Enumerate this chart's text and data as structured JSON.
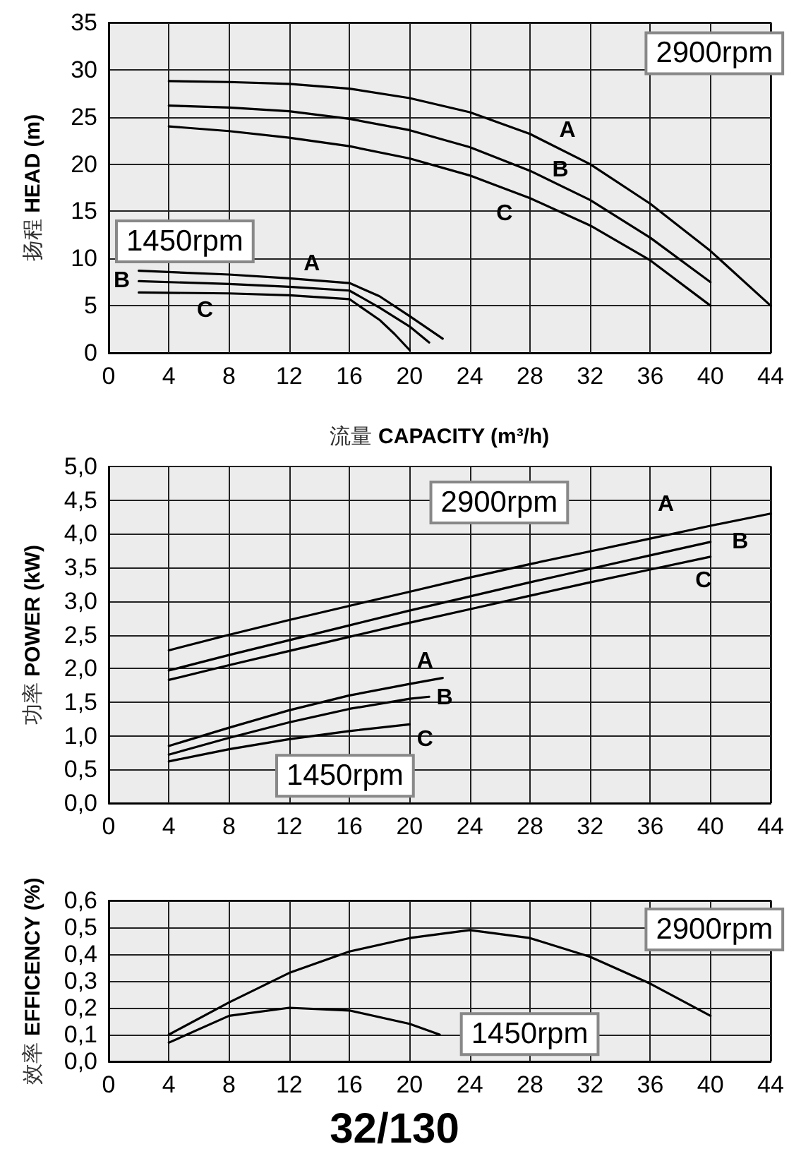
{
  "chart_data": [
    {
      "type": "line",
      "xlabel": "流量 CAPACITY (m³/h)",
      "ylabel": "扬程 HEAD (m)",
      "xlim": [
        0,
        44
      ],
      "xticks": [
        0,
        4,
        8,
        12,
        16,
        20,
        24,
        28,
        32,
        36,
        40,
        44
      ],
      "ylim": [
        0,
        35
      ],
      "yticks": [
        0,
        5,
        10,
        15,
        20,
        25,
        30,
        35
      ],
      "grid": true,
      "marker": "none",
      "line_style": "solid",
      "annotations": [
        "2900rpm",
        "1450rpm"
      ],
      "series": [
        {
          "name": "A",
          "color": "#000000",
          "x": [
            4,
            8,
            12,
            16,
            20,
            24,
            28,
            32,
            36,
            40,
            44
          ],
          "values": [
            28.8,
            28.7,
            28.5,
            28.0,
            27.0,
            25.5,
            23.2,
            20.0,
            15.8,
            10.8,
            5.0
          ]
        },
        {
          "name": "B",
          "color": "#000000",
          "x": [
            4,
            8,
            12,
            16,
            20,
            24,
            28,
            32,
            36,
            40
          ],
          "values": [
            26.2,
            26.0,
            25.6,
            24.8,
            23.6,
            21.8,
            19.3,
            16.2,
            12.2,
            7.5
          ]
        },
        {
          "name": "C",
          "color": "#000000",
          "x": [
            4,
            8,
            12,
            16,
            20,
            24,
            28,
            32,
            36,
            40
          ],
          "values": [
            24.0,
            23.5,
            22.8,
            21.9,
            20.6,
            18.8,
            16.4,
            13.5,
            9.8,
            5.0
          ]
        },
        {
          "name": "A",
          "color": "#000000",
          "x": [
            2,
            8,
            12,
            16,
            18,
            20,
            22.2
          ],
          "values": [
            8.7,
            8.3,
            7.9,
            7.4,
            6.0,
            3.9,
            1.5
          ]
        },
        {
          "name": "B",
          "color": "#000000",
          "x": [
            2,
            8,
            12,
            16,
            18,
            20,
            21.3
          ],
          "values": [
            7.6,
            7.3,
            7.0,
            6.6,
            4.8,
            2.8,
            1.1
          ]
        },
        {
          "name": "C",
          "color": "#000000",
          "x": [
            2,
            8,
            12,
            16,
            18,
            19,
            20
          ],
          "values": [
            6.4,
            6.3,
            6.1,
            5.7,
            3.5,
            2.0,
            0.3
          ]
        }
      ]
    },
    {
      "type": "line",
      "ylabel": "功率 POWER (kW)",
      "xlim": [
        0,
        44
      ],
      "xticks": [
        0,
        4,
        8,
        12,
        16,
        20,
        24,
        28,
        32,
        36,
        40,
        44
      ],
      "ylim": [
        0,
        5
      ],
      "yticks": [
        {
          "value": 0,
          "label": "0,0"
        },
        {
          "value": 0.5,
          "label": "0,5"
        },
        {
          "value": 1,
          "label": "1,0"
        },
        {
          "value": 1.5,
          "label": "1,5"
        },
        {
          "value": 2,
          "label": "2,0"
        },
        {
          "value": 2.5,
          "label": "2,5"
        },
        {
          "value": 3,
          "label": "3,0"
        },
        {
          "value": 3.5,
          "label": "3,5"
        },
        {
          "value": 4,
          "label": "4,0"
        },
        {
          "value": 4.5,
          "label": "4,5"
        },
        {
          "value": 5,
          "label": "5,0"
        }
      ],
      "grid": true,
      "marker": "none",
      "line_style": "solid",
      "annotations": [
        "2900rpm",
        "1450rpm"
      ],
      "series": [
        {
          "name": "A",
          "color": "#000000",
          "x": [
            4,
            8,
            12,
            16,
            20,
            24,
            28,
            32,
            36,
            40,
            44
          ],
          "values": [
            2.27,
            2.5,
            2.72,
            2.93,
            3.14,
            3.35,
            3.55,
            3.74,
            3.93,
            4.12,
            4.3
          ]
        },
        {
          "name": "B",
          "color": "#000000",
          "x": [
            4,
            8,
            12,
            16,
            20,
            24,
            28,
            32,
            36,
            40
          ],
          "values": [
            1.97,
            2.2,
            2.42,
            2.64,
            2.86,
            3.07,
            3.28,
            3.48,
            3.68,
            3.88
          ]
        },
        {
          "name": "C",
          "color": "#000000",
          "x": [
            4,
            8,
            12,
            16,
            20,
            24,
            28,
            32,
            36,
            40
          ],
          "values": [
            1.83,
            2.05,
            2.26,
            2.47,
            2.68,
            2.88,
            3.08,
            3.28,
            3.47,
            3.66
          ]
        },
        {
          "name": "A",
          "color": "#000000",
          "x": [
            4,
            8,
            12,
            16,
            20,
            22.2
          ],
          "values": [
            0.85,
            1.12,
            1.38,
            1.6,
            1.77,
            1.86
          ]
        },
        {
          "name": "B",
          "color": "#000000",
          "x": [
            4,
            8,
            12,
            16,
            20,
            21.3
          ],
          "values": [
            0.72,
            0.97,
            1.2,
            1.4,
            1.55,
            1.58
          ]
        },
        {
          "name": "C",
          "color": "#000000",
          "x": [
            4,
            8,
            12,
            16,
            20
          ],
          "values": [
            0.62,
            0.8,
            0.95,
            1.07,
            1.17
          ]
        }
      ]
    },
    {
      "type": "line",
      "title": "32/130",
      "ylabel": "效率 EFFICENCY (%)",
      "xlim": [
        0,
        44
      ],
      "xticks": [
        0,
        4,
        8,
        12,
        16,
        20,
        24,
        28,
        32,
        36,
        40,
        44
      ],
      "ylim": [
        0,
        0.6
      ],
      "yticks": [
        {
          "value": 0,
          "label": "0,0"
        },
        {
          "value": 0.1,
          "label": "0,1"
        },
        {
          "value": 0.2,
          "label": "0,2"
        },
        {
          "value": 0.3,
          "label": "0,3"
        },
        {
          "value": 0.4,
          "label": "0,4"
        },
        {
          "value": 0.5,
          "label": "0,5"
        },
        {
          "value": 0.6,
          "label": "0,6"
        }
      ],
      "grid": true,
      "marker": "none",
      "line_style": "solid",
      "annotations": [
        "2900rpm",
        "1450rpm"
      ],
      "series": [
        {
          "color": "#000000",
          "x": [
            4,
            8,
            12,
            16,
            20,
            24,
            28,
            32,
            36,
            40
          ],
          "values": [
            0.1,
            0.22,
            0.33,
            0.41,
            0.46,
            0.49,
            0.46,
            0.39,
            0.29,
            0.17
          ]
        },
        {
          "color": "#000000",
          "x": [
            4,
            8,
            12,
            16,
            20,
            22
          ],
          "values": [
            0.07,
            0.17,
            0.2,
            0.19,
            0.14,
            0.1
          ]
        }
      ]
    }
  ]
}
